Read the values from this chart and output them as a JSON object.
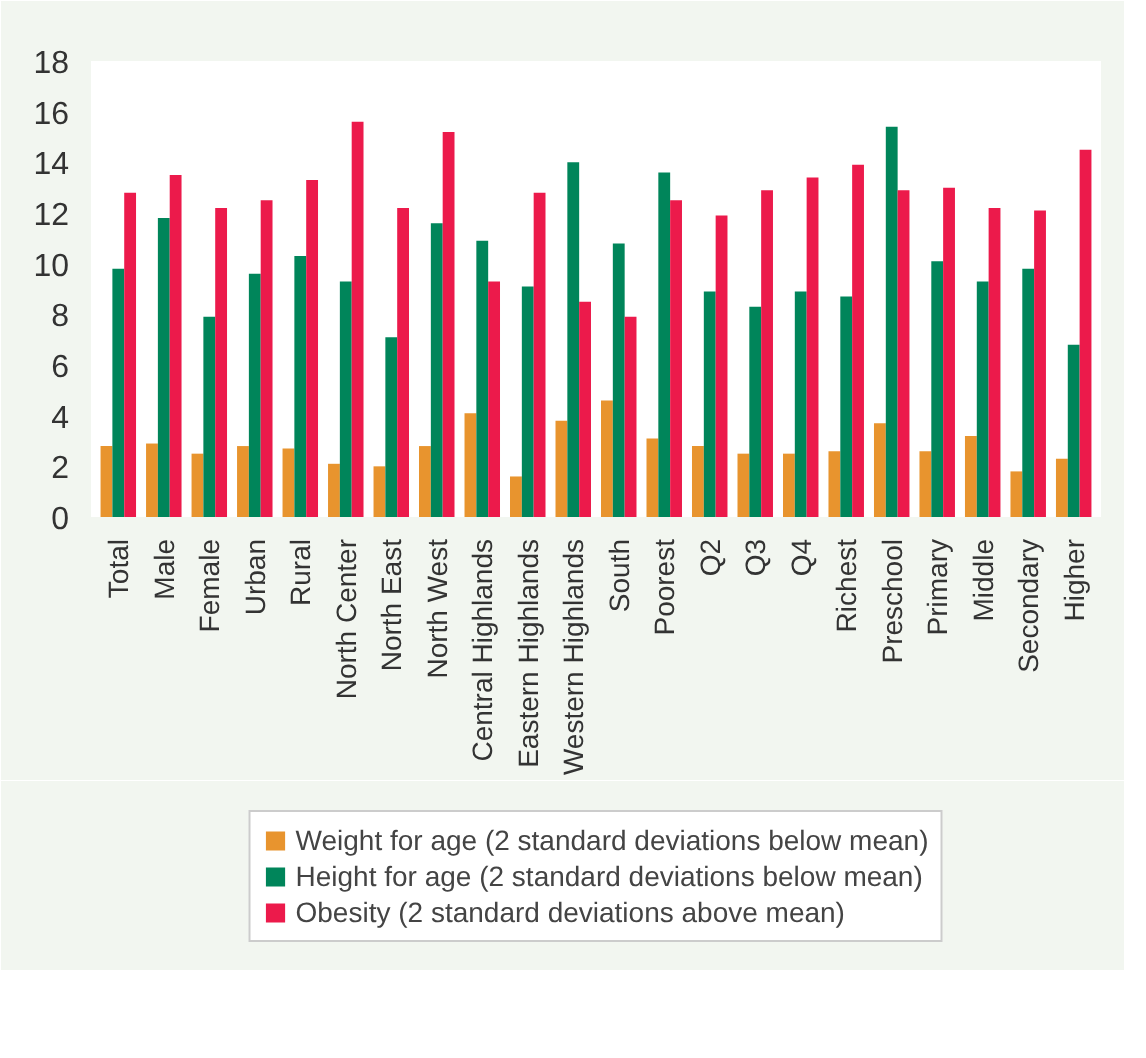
{
  "chart_data": {
    "type": "bar",
    "categories": [
      "Total",
      "Male",
      "Female",
      "Urban",
      "Rural",
      "North Center",
      "North East",
      "North West",
      "Central Highlands",
      "Eastern Highlands",
      "Western Highlands",
      "South",
      "Poorest",
      "Q2",
      "Q3",
      "Q4",
      "Richest",
      "Preschool",
      "Primary",
      "Middle",
      "Secondary",
      "Higher"
    ],
    "series": [
      {
        "name": "Weight for age (2 standard deviations below mean)",
        "color": "#e8942e",
        "values": [
          2.8,
          2.9,
          2.5,
          2.8,
          2.7,
          2.1,
          2.0,
          2.8,
          4.1,
          1.6,
          3.8,
          4.6,
          3.1,
          2.8,
          2.5,
          2.5,
          2.6,
          3.7,
          2.6,
          3.2,
          1.8,
          2.3
        ]
      },
      {
        "name": "Height for age (2 standard deviations below mean)",
        "color": "#00855a",
        "values": [
          9.8,
          11.8,
          7.9,
          9.6,
          10.3,
          9.3,
          7.1,
          11.6,
          10.9,
          9.1,
          14.0,
          10.8,
          13.6,
          8.9,
          8.3,
          8.9,
          8.7,
          15.4,
          10.1,
          9.3,
          9.8,
          6.8
        ]
      },
      {
        "name": "Obesity (2 standard deviations above mean)",
        "color": "#ec1a4b",
        "values": [
          12.8,
          13.5,
          12.2,
          12.5,
          13.3,
          15.6,
          12.2,
          15.2,
          9.3,
          12.8,
          8.5,
          7.9,
          12.5,
          11.9,
          12.9,
          13.4,
          13.9,
          12.9,
          13.0,
          12.2,
          12.1,
          14.5
        ]
      }
    ],
    "ylim": [
      0,
      18
    ],
    "yticks": [
      0,
      2,
      4,
      6,
      8,
      10,
      12,
      14,
      16,
      18
    ],
    "grid": false,
    "legend": "bottom"
  }
}
